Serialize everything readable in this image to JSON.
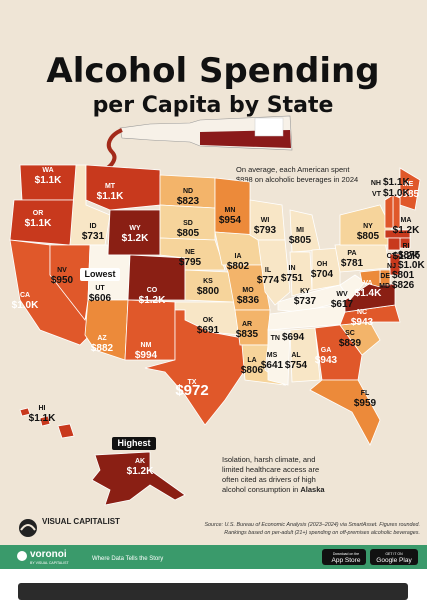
{
  "header": {
    "title": "Alcohol Spending",
    "subtitle": "per Capita by State"
  },
  "average_note": {
    "lines": [
      "On average, each American spent",
      "$898 on alcoholic beverages in 2024"
    ]
  },
  "lowest_label": "Lowest",
  "highest_label": "Highest",
  "states": [
    {
      "abbr": "WA",
      "value": "$1.1K"
    },
    {
      "abbr": "OR",
      "value": "$1.1K"
    },
    {
      "abbr": "CA",
      "value": "$1.0K"
    },
    {
      "abbr": "ID",
      "value": "$731"
    },
    {
      "abbr": "NV",
      "value": "$950"
    },
    {
      "abbr": "MT",
      "value": "$1.1K"
    },
    {
      "abbr": "WY",
      "value": "$1.2K"
    },
    {
      "abbr": "UT",
      "value": "$606"
    },
    {
      "abbr": "AZ",
      "value": "$882"
    },
    {
      "abbr": "CO",
      "value": "$1.2K"
    },
    {
      "abbr": "NM",
      "value": "$994"
    },
    {
      "abbr": "ND",
      "value": "$823"
    },
    {
      "abbr": "SD",
      "value": "$805"
    },
    {
      "abbr": "NE",
      "value": "$795"
    },
    {
      "abbr": "KS",
      "value": "$800"
    },
    {
      "abbr": "OK",
      "value": "$691"
    },
    {
      "abbr": "TX",
      "value": "$972"
    },
    {
      "abbr": "MN",
      "value": "$954"
    },
    {
      "abbr": "IA",
      "value": "$802"
    },
    {
      "abbr": "MO",
      "value": "$836"
    },
    {
      "abbr": "AR",
      "value": "$835"
    },
    {
      "abbr": "LA",
      "value": "$806"
    },
    {
      "abbr": "WI",
      "value": "$793"
    },
    {
      "abbr": "IL",
      "value": "$774"
    },
    {
      "abbr": "MI",
      "value": "$805"
    },
    {
      "abbr": "IN",
      "value": "$751"
    },
    {
      "abbr": "OH",
      "value": "$704"
    },
    {
      "abbr": "KY",
      "value": "$737"
    },
    {
      "abbr": "TN",
      "value": "$694"
    },
    {
      "abbr": "MS",
      "value": "$641"
    },
    {
      "abbr": "AL",
      "value": "$754"
    },
    {
      "abbr": "GA",
      "value": "$943"
    },
    {
      "abbr": "FL",
      "value": "$959"
    },
    {
      "abbr": "SC",
      "value": "$839"
    },
    {
      "abbr": "NC",
      "value": "$943"
    },
    {
      "abbr": "VA",
      "value": "$1.4K"
    },
    {
      "abbr": "WV",
      "value": "$617"
    },
    {
      "abbr": "PA",
      "value": "$781"
    },
    {
      "abbr": "NY",
      "value": "$805"
    },
    {
      "abbr": "ME",
      "value": "$985"
    },
    {
      "abbr": "NH",
      "value": "$1.1K"
    },
    {
      "abbr": "VT",
      "value": "$1.0K"
    },
    {
      "abbr": "MA",
      "value": "$1.2K"
    },
    {
      "abbr": "RI",
      "value": "$1.2K"
    },
    {
      "abbr": "CT",
      "value": "$875"
    },
    {
      "abbr": "NJ",
      "value": "$1.0K"
    },
    {
      "abbr": "DE",
      "value": "$801"
    },
    {
      "abbr": "MD",
      "value": "$826"
    },
    {
      "abbr": "HI",
      "value": "$1.1K"
    },
    {
      "abbr": "AK",
      "value": "$1.2K"
    }
  ],
  "alaska_note": {
    "lines": [
      "Isolation, harsh climate, and",
      "limited healthcare access are",
      "often cited as drivers of high",
      "alcohol consumption in"
    ],
    "bold": "Alaska"
  },
  "footer": {
    "brand": "VISUAL CAPITALIST",
    "source": [
      "Source: U.S. Bureau of Economic Analysis (2023–2024) via SmartAsset. Figures rounded.",
      "Rankings based on per-adult (21+) spending on off-premises alcoholic beverages."
    ]
  },
  "banner": {
    "logo": "voronoi",
    "logo_sub": "BY VISUAL CAPITALIST",
    "tagline": "Where Data Tells the Story",
    "app_store": {
      "small": "Download on the",
      "big": "App Store"
    },
    "google_play": {
      "small": "GET IT ON",
      "big": "Google Play"
    }
  }
}
